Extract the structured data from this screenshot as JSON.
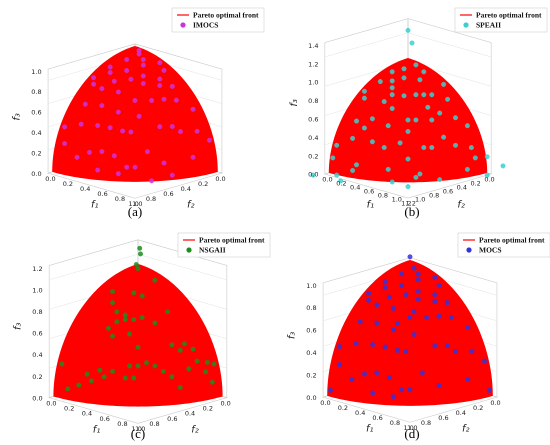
{
  "chart_data": [
    {
      "type": "scatter",
      "panel_caption": "(a)",
      "legend": {
        "front_label": "Pareto optimal front",
        "series_label": "IMOCS"
      },
      "xlabel": "f₂",
      "ylabel": "f₁",
      "zlabel": "f₃",
      "x_ticks": [
        "0.0",
        "0.2",
        "0.4",
        "0.6",
        "0.8",
        "1.0"
      ],
      "y_ticks": [
        "0.0",
        "0.2",
        "0.4",
        "0.6",
        "0.8",
        "1.0"
      ],
      "z_ticks": [
        "0.0",
        "0.2",
        "0.4",
        "0.6",
        "0.8",
        "1.0"
      ],
      "zlim": [
        0,
        1.0
      ],
      "colors": {
        "front": "#ff0000",
        "points": "#cc33dd"
      },
      "points": [
        [
          0.05,
          0.1,
          0.99
        ],
        [
          0.3,
          0.4,
          0.87
        ],
        [
          0.6,
          0.2,
          0.77
        ],
        [
          0.2,
          0.7,
          0.68
        ],
        [
          0.5,
          0.5,
          0.7
        ],
        [
          0.75,
          0.45,
          0.48
        ],
        [
          0.85,
          0.2,
          0.48
        ],
        [
          0.15,
          0.9,
          0.41
        ],
        [
          0.35,
          0.25,
          0.9
        ],
        [
          0.45,
          0.75,
          0.49
        ],
        [
          0.65,
          0.6,
          0.45
        ],
        [
          0.9,
          0.35,
          0.25
        ],
        [
          0.1,
          0.45,
          0.89
        ],
        [
          0.25,
          0.15,
          0.96
        ],
        [
          0.55,
          0.35,
          0.76
        ],
        [
          0.4,
          0.6,
          0.7
        ],
        [
          0.7,
          0.3,
          0.65
        ],
        [
          0.8,
          0.55,
          0.24
        ],
        [
          0.3,
          0.85,
          0.43
        ],
        [
          0.6,
          0.75,
          0.28
        ],
        [
          0.95,
          0.1,
          0.29
        ],
        [
          0.05,
          0.95,
          0.31
        ],
        [
          0.5,
          0.85,
          0.17
        ],
        [
          0.85,
          0.45,
          0.27
        ],
        [
          0.2,
          0.3,
          0.93
        ],
        [
          0.45,
          0.15,
          0.88
        ],
        [
          0.7,
          0.7,
          0.14
        ],
        [
          0.15,
          0.6,
          0.78
        ],
        [
          0.35,
          0.45,
          0.82
        ],
        [
          0.9,
          0.05,
          0.43
        ],
        [
          0.1,
          0.8,
          0.59
        ],
        [
          0.55,
          0.6,
          0.58
        ],
        [
          0.75,
          0.15,
          0.64
        ],
        [
          0.25,
          0.95,
          0.19
        ],
        [
          0.65,
          0.45,
          0.61
        ],
        [
          0.4,
          0.35,
          0.85
        ],
        [
          0.8,
          0.35,
          0.49
        ],
        [
          0.3,
          0.65,
          0.7
        ],
        [
          0.5,
          0.25,
          0.83
        ],
        [
          0.2,
          0.5,
          0.84
        ],
        [
          0.6,
          0.1,
          0.79
        ],
        [
          0.05,
          0.35,
          0.93
        ],
        [
          0.95,
          0.25,
          0.19
        ],
        [
          0.45,
          0.9,
          0.05
        ],
        [
          0.7,
          0.55,
          0.46
        ],
        [
          0.15,
          0.25,
          0.96
        ],
        [
          0.85,
          0.65,
          0.1
        ],
        [
          0.35,
          0.8,
          0.48
        ],
        [
          0.55,
          0.05,
          0.83
        ],
        [
          0.25,
          0.55,
          0.8
        ],
        [
          0.65,
          0.85,
          0.03
        ],
        [
          0.1,
          0.15,
          0.98
        ],
        [
          0.75,
          0.65,
          0.14
        ],
        [
          0.4,
          0.1,
          0.91
        ],
        [
          0.9,
          0.45,
          0.1
        ]
      ]
    },
    {
      "type": "scatter",
      "panel_caption": "(b)",
      "legend": {
        "front_label": "Pareto optimal front",
        "series_label": "SPEAII"
      },
      "xlabel": "f₂",
      "ylabel": "f₁",
      "zlabel": "f₃",
      "x_ticks": [
        "0.0",
        "0.2",
        "0.4",
        "0.6",
        "0.8",
        "1.0",
        "1.2"
      ],
      "y_ticks": [
        "0.0",
        "0.2",
        "0.4",
        "0.6",
        "0.8",
        "1.0",
        "1.2"
      ],
      "z_ticks": [
        "0.0",
        "0.2",
        "0.4",
        "0.6",
        "0.8",
        "1.0",
        "1.2",
        "1.4"
      ],
      "zlim": [
        0,
        1.4
      ],
      "colors": {
        "front": "#ff0000",
        "points": "#3ccfcf"
      },
      "points": [
        [
          0.1,
          0.2,
          1.0
        ],
        [
          0.3,
          0.5,
          0.8
        ],
        [
          0.6,
          0.3,
          0.75
        ],
        [
          0.2,
          0.8,
          0.6
        ],
        [
          0.5,
          0.6,
          0.6
        ],
        [
          0.8,
          0.5,
          0.35
        ],
        [
          0.9,
          0.2,
          0.4
        ],
        [
          0.15,
          1.0,
          0.2
        ],
        [
          0.4,
          0.2,
          0.9
        ],
        [
          0.5,
          0.8,
          0.35
        ],
        [
          0.7,
          0.7,
          0.25
        ],
        [
          1.0,
          0.3,
          0.1
        ],
        [
          0.05,
          0.5,
          0.85
        ],
        [
          0.3,
          0.1,
          0.95
        ],
        [
          0.6,
          0.4,
          0.7
        ],
        [
          0.4,
          0.7,
          0.6
        ],
        [
          0.75,
          0.3,
          0.6
        ],
        [
          0.85,
          0.6,
          0.15
        ],
        [
          0.3,
          0.9,
          0.35
        ],
        [
          0.65,
          0.8,
          0.1
        ],
        [
          1.05,
          0.1,
          0.2
        ],
        [
          0.05,
          1.05,
          0.2
        ],
        [
          0.55,
          0.95,
          0.05
        ],
        [
          0.2,
          0.35,
          0.9
        ],
        [
          0.45,
          0.1,
          0.88
        ],
        [
          0.15,
          0.65,
          0.75
        ],
        [
          0.35,
          0.45,
          0.8
        ],
        [
          0.95,
          0.05,
          0.3
        ],
        [
          0.1,
          0.85,
          0.5
        ],
        [
          0.55,
          0.55,
          0.6
        ],
        [
          0.8,
          0.15,
          0.55
        ],
        [
          0.25,
          1.0,
          0.1
        ],
        [
          0.7,
          0.45,
          0.55
        ],
        [
          0.45,
          0.4,
          0.8
        ],
        [
          0.85,
          0.4,
          0.4
        ],
        [
          0.3,
          0.7,
          0.65
        ],
        [
          0.5,
          0.3,
          0.8
        ],
        [
          0.25,
          0.55,
          0.8
        ],
        [
          0.65,
          0.1,
          0.75
        ],
        [
          0.95,
          0.3,
          0.15
        ],
        [
          0.7,
          0.6,
          0.4
        ],
        [
          0.4,
          0.85,
          0.45
        ],
        [
          0.6,
          0.05,
          0.8
        ],
        [
          0.2,
          0.15,
          0.97
        ],
        [
          0.9,
          0.7,
          0.05
        ],
        [
          0.1,
          0.3,
          0.95
        ],
        [
          0.75,
          0.85,
          0.1
        ],
        [
          0.3,
          0.25,
          0.92
        ],
        [
          0.55,
          0.75,
          0.35
        ],
        [
          0.8,
          0.25,
          0.5
        ],
        [
          0.35,
          0.6,
          0.7
        ],
        [
          0.15,
          0.95,
          0.3
        ],
        [
          1.1,
          0.2,
          0.05
        ],
        [
          0.6,
          0.6,
          0.5
        ],
        [
          0.45,
          0.25,
          0.85
        ],
        [
          1.25,
          0.05,
          0.05
        ],
        [
          0.05,
          1.25,
          0.15
        ],
        [
          0.1,
          0.1,
          1.35
        ],
        [
          1.2,
          0.35,
          0.05
        ],
        [
          0.05,
          0.1,
          1.2
        ],
        [
          0.15,
          1.15,
          0.05
        ],
        [
          0.9,
          0.9,
          0.05
        ]
      ]
    },
    {
      "type": "scatter",
      "panel_caption": "(c)",
      "legend": {
        "front_label": "Pareto optimal front",
        "series_label": "NSGAII"
      },
      "xlabel": "f₂",
      "ylabel": "f₁",
      "zlabel": "f₃",
      "x_ticks": [
        "0.0",
        "0.2",
        "0.4",
        "0.6",
        "0.8",
        "1.0"
      ],
      "y_ticks": [
        "0.0",
        "0.2",
        "0.4",
        "0.6",
        "0.8",
        "1.0"
      ],
      "z_ticks": [
        "0.0",
        "0.2",
        "0.4",
        "0.6",
        "0.8",
        "1.0",
        "1.2"
      ],
      "zlim": [
        0,
        1.2
      ],
      "colors": {
        "front": "#ff0000",
        "points": "#1e8c1e"
      },
      "points": [
        [
          0.0,
          0.02,
          1.15
        ],
        [
          0.0,
          0.03,
          1.1
        ],
        [
          0.02,
          0.0,
          1.0
        ],
        [
          0.05,
          0.05,
          0.98
        ],
        [
          0.3,
          0.35,
          0.85
        ],
        [
          0.5,
          0.2,
          0.8
        ],
        [
          0.55,
          0.3,
          0.75
        ],
        [
          0.5,
          0.35,
          0.72
        ],
        [
          0.55,
          0.4,
          0.7
        ],
        [
          0.6,
          0.35,
          0.68
        ],
        [
          0.65,
          0.3,
          0.62
        ],
        [
          0.5,
          0.45,
          0.7
        ],
        [
          0.45,
          0.5,
          0.72
        ],
        [
          0.2,
          0.9,
          0.35
        ],
        [
          0.15,
          0.95,
          0.25
        ],
        [
          0.1,
          0.92,
          0.32
        ],
        [
          0.2,
          0.85,
          0.45
        ],
        [
          0.25,
          0.8,
          0.5
        ],
        [
          0.05,
          0.95,
          0.3
        ],
        [
          0.1,
          0.98,
          0.15
        ],
        [
          0.85,
          0.4,
          0.3
        ],
        [
          0.9,
          0.3,
          0.25
        ],
        [
          0.8,
          0.5,
          0.3
        ],
        [
          0.85,
          0.45,
          0.25
        ],
        [
          0.95,
          0.25,
          0.15
        ],
        [
          0.9,
          0.35,
          0.2
        ],
        [
          0.3,
          0.8,
          0.45
        ],
        [
          0.35,
          0.75,
          0.5
        ],
        [
          0.7,
          0.6,
          0.35
        ],
        [
          0.65,
          0.65,
          0.35
        ],
        [
          0.75,
          0.6,
          0.25
        ],
        [
          0.55,
          0.75,
          0.35
        ],
        [
          0.6,
          0.7,
          0.38
        ],
        [
          0.5,
          0.8,
          0.3
        ],
        [
          0.45,
          0.85,
          0.25
        ],
        [
          0.7,
          0.65,
          0.25
        ],
        [
          0.4,
          0.9,
          0.15
        ],
        [
          0.3,
          0.9,
          0.3
        ],
        [
          0.95,
          0.05,
          0.3
        ],
        [
          0.98,
          0.15,
          0.1
        ],
        [
          0.1,
          0.3,
          0.94
        ],
        [
          0.4,
          0.6,
          0.68
        ],
        [
          0.6,
          0.6,
          0.5
        ],
        [
          0.35,
          0.3,
          0.88
        ],
        [
          0.45,
          0.15,
          0.88
        ],
        [
          0.7,
          0.4,
          0.58
        ],
        [
          0.25,
          0.6,
          0.75
        ],
        [
          0.6,
          0.5,
          0.6
        ]
      ]
    },
    {
      "type": "scatter",
      "panel_caption": "(d)",
      "legend": {
        "front_label": "Pareto optimal front",
        "series_label": "MOCS"
      },
      "xlabel": "f₂",
      "ylabel": "f₁",
      "zlabel": "f₃",
      "x_ticks": [
        "0.0",
        "0.2",
        "0.4",
        "0.6",
        "0.8",
        "1.0"
      ],
      "y_ticks": [
        "0.0",
        "0.2",
        "0.4",
        "0.6",
        "0.8",
        "1.0"
      ],
      "z_ticks": [
        "0.0",
        "0.2",
        "0.4",
        "0.6",
        "0.8",
        "1.0"
      ],
      "zlim": [
        0,
        1.0
      ],
      "colors": {
        "front": "#ff0000",
        "points": "#3333dd"
      },
      "points": [
        [
          0.05,
          0.05,
          1.05
        ],
        [
          0.3,
          0.4,
          0.87
        ],
        [
          0.6,
          0.2,
          0.77
        ],
        [
          0.2,
          0.7,
          0.68
        ],
        [
          0.5,
          0.5,
          0.7
        ],
        [
          0.75,
          0.45,
          0.48
        ],
        [
          0.85,
          0.2,
          0.48
        ],
        [
          0.15,
          0.9,
          0.41
        ],
        [
          0.35,
          0.25,
          0.9
        ],
        [
          0.45,
          0.75,
          0.49
        ],
        [
          0.65,
          0.6,
          0.45
        ],
        [
          0.9,
          0.35,
          0.25
        ],
        [
          0.1,
          0.45,
          0.89
        ],
        [
          0.25,
          0.15,
          0.96
        ],
        [
          0.55,
          0.35,
          0.76
        ],
        [
          0.4,
          0.6,
          0.7
        ],
        [
          0.7,
          0.3,
          0.65
        ],
        [
          0.8,
          0.55,
          0.24
        ],
        [
          0.3,
          0.85,
          0.43
        ],
        [
          0.6,
          0.75,
          0.28
        ],
        [
          0.95,
          0.1,
          0.29
        ],
        [
          0.05,
          0.95,
          0.31
        ],
        [
          0.5,
          0.85,
          0.17
        ],
        [
          0.85,
          0.45,
          0.27
        ],
        [
          0.2,
          0.3,
          0.93
        ],
        [
          0.45,
          0.15,
          0.88
        ],
        [
          0.7,
          0.7,
          0.14
        ],
        [
          0.15,
          0.6,
          0.78
        ],
        [
          0.35,
          0.45,
          0.82
        ],
        [
          0.9,
          0.05,
          0.43
        ],
        [
          0.1,
          0.8,
          0.59
        ],
        [
          0.55,
          0.6,
          0.58
        ],
        [
          0.75,
          0.15,
          0.64
        ],
        [
          0.25,
          0.95,
          0.19
        ],
        [
          0.65,
          0.45,
          0.61
        ],
        [
          0.4,
          0.35,
          0.85
        ],
        [
          0.8,
          0.35,
          0.49
        ],
        [
          0.3,
          0.65,
          0.7
        ],
        [
          0.5,
          0.25,
          0.83
        ],
        [
          0.2,
          0.5,
          0.84
        ],
        [
          0.6,
          0.1,
          0.79
        ],
        [
          0.05,
          0.35,
          0.93
        ],
        [
          0.95,
          0.25,
          0.19
        ],
        [
          0.7,
          0.55,
          0.46
        ],
        [
          0.15,
          0.25,
          0.96
        ],
        [
          0.85,
          0.65,
          0.1
        ],
        [
          0.35,
          0.8,
          0.48
        ],
        [
          0.55,
          0.05,
          0.83
        ],
        [
          0.25,
          0.55,
          0.8
        ],
        [
          0.1,
          0.15,
          0.98
        ],
        [
          0.75,
          0.65,
          0.14
        ],
        [
          0.4,
          0.1,
          0.91
        ],
        [
          0.9,
          0.45,
          0.1
        ],
        [
          0.02,
          0.98,
          0.05
        ],
        [
          0.98,
          0.02,
          0.05
        ],
        [
          0.6,
          0.45,
          0.66
        ],
        [
          0.45,
          0.5,
          0.74
        ]
      ]
    }
  ]
}
